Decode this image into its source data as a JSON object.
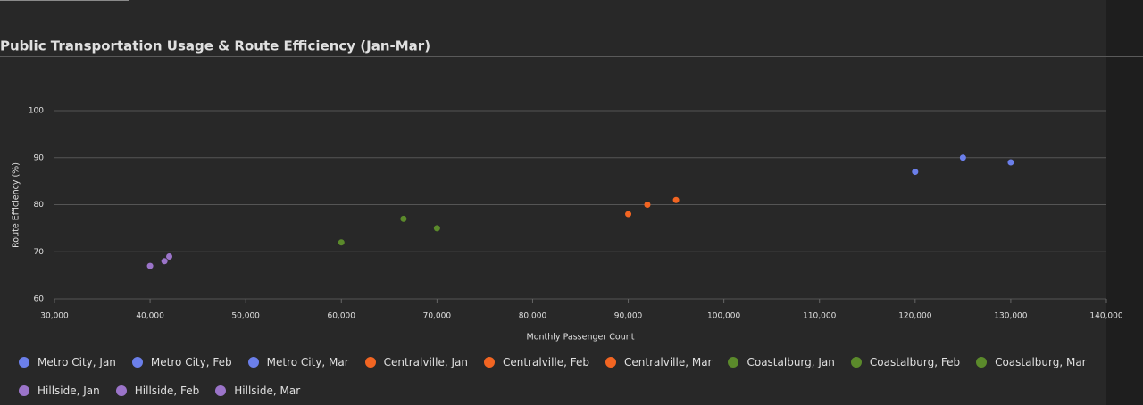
{
  "chart_data": {
    "type": "scatter",
    "title": "Public Transportation Usage & Route Efficiency (Jan-Mar)",
    "x_label": "Monthly Passenger Count",
    "y_label": "Route Efficiency (%)",
    "xlim": [
      30000,
      140000
    ],
    "xticks": [
      {
        "value": 30000,
        "label": "30,000"
      },
      {
        "value": 40000,
        "label": "40,000"
      },
      {
        "value": 50000,
        "label": "50,000"
      },
      {
        "value": 60000,
        "label": "60,000"
      },
      {
        "value": 70000,
        "label": "70,000"
      },
      {
        "value": 80000,
        "label": "80,000"
      },
      {
        "value": 90000,
        "label": "90,000"
      },
      {
        "value": 100000,
        "label": "100,000"
      },
      {
        "value": 110000,
        "label": "110,000"
      },
      {
        "value": 120000,
        "label": "120,000"
      },
      {
        "value": 130000,
        "label": "130,000"
      },
      {
        "value": 140000,
        "label": "140,000"
      }
    ],
    "ylim": [
      60,
      100
    ],
    "yticks": [
      60,
      70,
      80,
      90,
      100
    ],
    "grid": true,
    "series": [
      {
        "name": "Metro City, Jan",
        "color": "#6b7fea",
        "x": [
          120000
        ],
        "values": [
          87
        ]
      },
      {
        "name": "Metro City, Feb",
        "color": "#6b7fea",
        "x": [
          125000
        ],
        "values": [
          90
        ]
      },
      {
        "name": "Metro City, Mar",
        "color": "#6b7fea",
        "x": [
          130000
        ],
        "values": [
          89
        ]
      },
      {
        "name": "Centralville, Jan",
        "color": "#f26522",
        "x": [
          90000
        ],
        "values": [
          78
        ]
      },
      {
        "name": "Centralville, Feb",
        "color": "#f26522",
        "x": [
          92000
        ],
        "values": [
          80
        ]
      },
      {
        "name": "Centralville, Mar",
        "color": "#f26522",
        "x": [
          95000
        ],
        "values": [
          81
        ]
      },
      {
        "name": "Coastalburg, Jan",
        "color": "#5b8a2b",
        "x": [
          60000
        ],
        "values": [
          72
        ]
      },
      {
        "name": "Coastalburg, Feb",
        "color": "#5b8a2b",
        "x": [
          66500
        ],
        "values": [
          77
        ]
      },
      {
        "name": "Coastalburg, Mar",
        "color": "#5b8a2b",
        "x": [
          70000
        ],
        "values": [
          75
        ]
      },
      {
        "name": "Hillside, Jan",
        "color": "#9b74c9",
        "x": [
          40000
        ],
        "values": [
          67
        ]
      },
      {
        "name": "Hillside, Feb",
        "color": "#9b74c9",
        "x": [
          41500
        ],
        "values": [
          68
        ]
      },
      {
        "name": "Hillside, Mar",
        "color": "#9b74c9",
        "x": [
          42000
        ],
        "values": [
          69
        ]
      }
    ]
  }
}
